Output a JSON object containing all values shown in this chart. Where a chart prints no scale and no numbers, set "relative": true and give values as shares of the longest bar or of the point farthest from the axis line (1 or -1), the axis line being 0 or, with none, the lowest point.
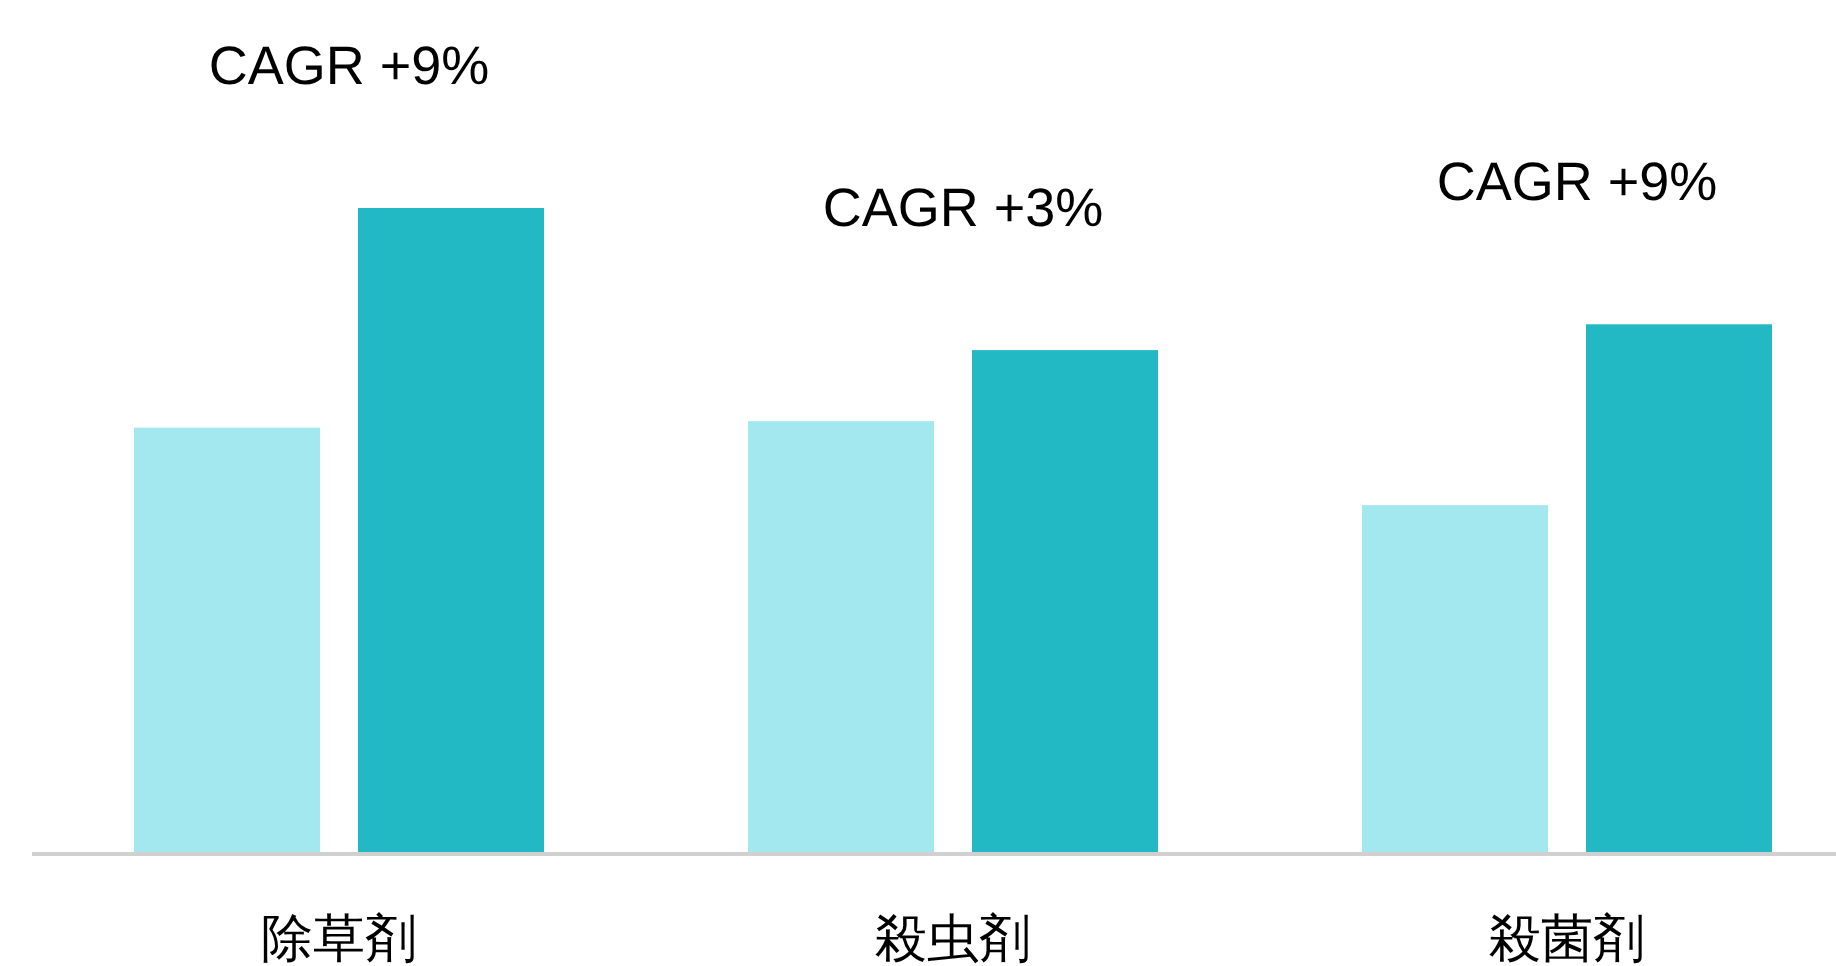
{
  "chart_data": {
    "type": "bar",
    "relative": true,
    "categories": [
      "除草剤",
      "殺虫剤",
      "殺菌剤"
    ],
    "series": [
      {
        "color": "#a2e8ee",
        "values": [
          0.66,
          0.67,
          0.54
        ]
      },
      {
        "color": "#22b8c4",
        "values": [
          1,
          0.78,
          0.82
        ]
      }
    ],
    "annotations": [
      "CAGR +9%",
      "CAGR +3%",
      "CAGR +9%"
    ]
  }
}
